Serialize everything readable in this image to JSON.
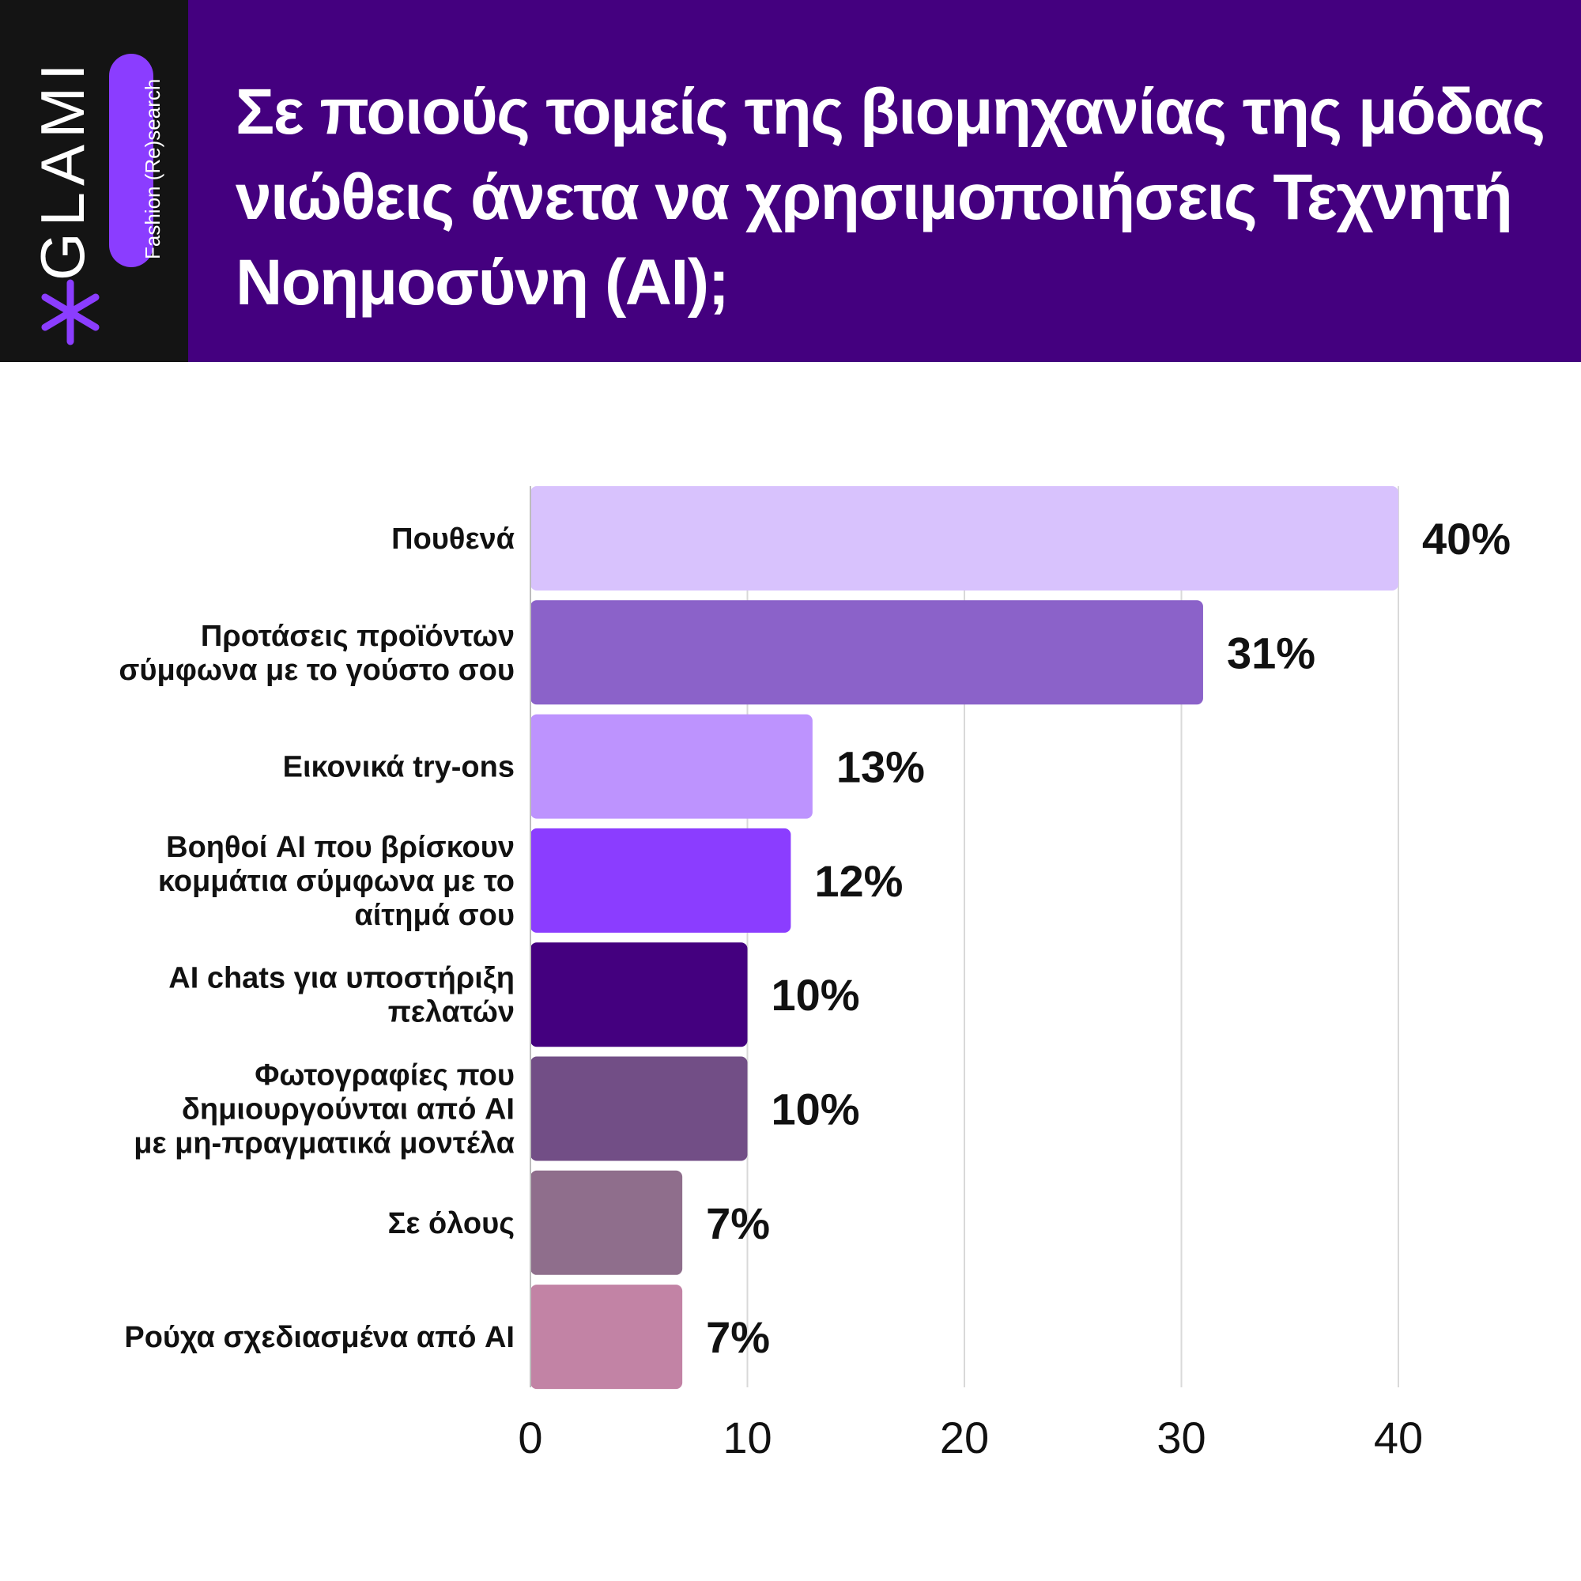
{
  "brand": {
    "name": "GLAMI",
    "tagline": "Fashion (Re)search",
    "icon": "asterisk-icon",
    "accent_color": "#8b3dff"
  },
  "header": {
    "background_color": "#44007f",
    "title": "Σε ποιούς τομείς της βιομηχανίας της μόδας νιώθεις άνετα να χρησιμοποιήσεις Τεχνητή Νοημοσύνη (AI);"
  },
  "chart_data": {
    "type": "bar",
    "orientation": "horizontal",
    "title": "",
    "xlabel": "",
    "ylabel": "",
    "xlim": [
      0,
      40
    ],
    "xticks": [
      0,
      10,
      20,
      30,
      40
    ],
    "grid": "vertical",
    "value_suffix": "%",
    "categories": [
      "Πουθενά",
      "Προτάσεις προϊόντων σύμφωνα με το γούστο σου",
      "Εικονικά try-ons",
      "Βοηθοί AI που βρίσκουν κομμάτια σύμφωνα με το αίτημά σου",
      "AI chats για υποστήριξη πελατών",
      "Φωτογραφίες που δημιουργούνται από AI με μη-πραγματικά μοντέλα",
      "Σε όλους",
      "Ρούχα σχεδιασμένα από AI"
    ],
    "category_lines": [
      [
        "Πουθενά"
      ],
      [
        "Προτάσεις προϊόντων",
        "σύμφωνα με το γούστο σου"
      ],
      [
        "Εικονικά try-ons"
      ],
      [
        "Βοηθοί AI που βρίσκουν",
        "κομμάτια σύμφωνα με το",
        "αίτημά σου"
      ],
      [
        "AI chats για υποστήριξη",
        "πελατών"
      ],
      [
        "Φωτογραφίες που",
        "δημιουργούνται από AI",
        "με μη-πραγματικά μοντέλα"
      ],
      [
        "Σε όλους"
      ],
      [
        "Ρούχα σχεδιασμένα από AI"
      ]
    ],
    "values": [
      40,
      31,
      13,
      12,
      10,
      10,
      7,
      7
    ],
    "colors": [
      "#d8c2fd",
      "#8b62c9",
      "#bd93fe",
      "#8b3dff",
      "#44007f",
      "#724e86",
      "#8f6e8c",
      "#c283a5"
    ]
  }
}
